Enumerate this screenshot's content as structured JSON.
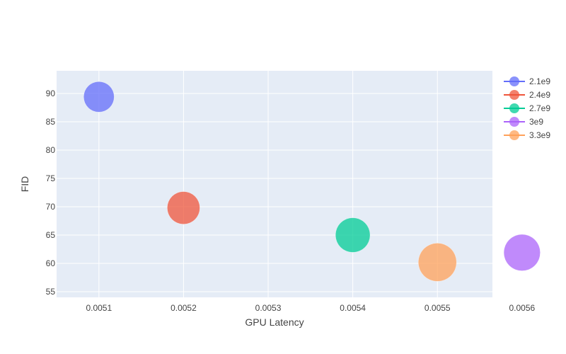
{
  "chart_data": {
    "type": "scatter",
    "title": "",
    "xlabel": "GPU Latency",
    "ylabel": "FID",
    "xlim": [
      0.00505,
      0.005565
    ],
    "ylim": [
      54,
      94
    ],
    "x_ticks": [
      {
        "value": 0.0051,
        "label": "0.0051"
      },
      {
        "value": 0.0052,
        "label": "0.0052"
      },
      {
        "value": 0.0053,
        "label": "0.0053"
      },
      {
        "value": 0.0054,
        "label": "0.0054"
      },
      {
        "value": 0.0055,
        "label": "0.0055"
      },
      {
        "value": 0.0056,
        "label": "0.0056"
      }
    ],
    "y_ticks": [
      {
        "value": 55,
        "label": "55"
      },
      {
        "value": 60,
        "label": "60"
      },
      {
        "value": 65,
        "label": "65"
      },
      {
        "value": 70,
        "label": "70"
      },
      {
        "value": 75,
        "label": "75"
      },
      {
        "value": 80,
        "label": "80"
      },
      {
        "value": 85,
        "label": "85"
      },
      {
        "value": 90,
        "label": "90"
      }
    ],
    "grid": true,
    "legend_position": "top-right",
    "series": [
      {
        "name": "2.1e9",
        "color": "#636efa",
        "x": 0.0051,
        "y": 89.4,
        "size": 2.1
      },
      {
        "name": "2.4e9",
        "color": "#ef553b",
        "x": 0.0052,
        "y": 69.8,
        "size": 2.4
      },
      {
        "name": "2.7e9",
        "color": "#00cc96",
        "x": 0.0054,
        "y": 65.0,
        "size": 2.7
      },
      {
        "name": "3e9",
        "color": "#ab63fa",
        "x": 0.0056,
        "y": 61.9,
        "size": 3.0
      },
      {
        "name": "3.3e9",
        "color": "#ffa15a",
        "x": 0.0055,
        "y": 60.2,
        "size": 3.3
      }
    ]
  }
}
